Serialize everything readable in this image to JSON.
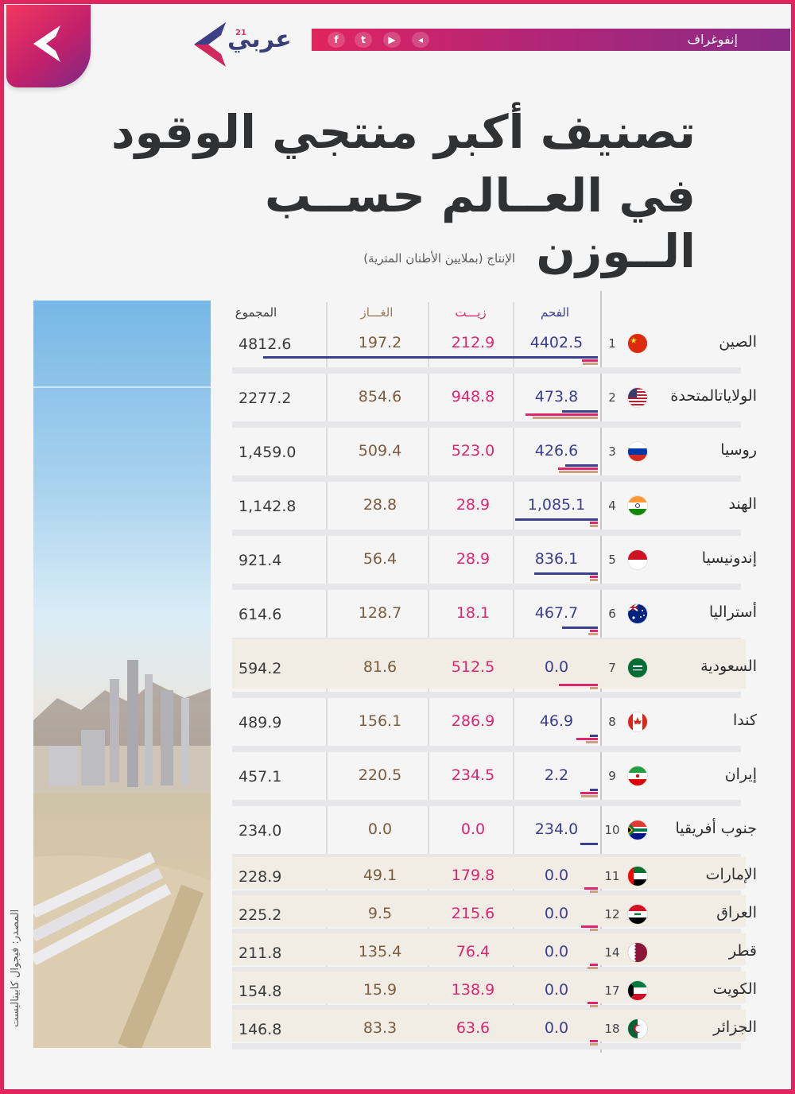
{
  "header": {
    "brand_name": "عربي",
    "brand_sup": "21",
    "section_label": "إنفوغراف",
    "social": [
      "f",
      "t",
      "▶",
      "◂"
    ]
  },
  "title_line1": "تصنيف أكبر منتجي الوقود",
  "title_line2": "في العــالم حســب الــوزن",
  "source": "المصدر: فيجوال كابيتاليست",
  "colors": {
    "coal": "#3d3d8f",
    "oil": "#e0246f",
    "gas": "#c9a27e",
    "total": "#3b3b3b",
    "accent": "#e0245e"
  },
  "chart_data": {
    "type": "table",
    "title": "تصنيف أكبر منتجي الوقود في العالم حسب الوزن",
    "subtitle": "الإنتاج (بملايين الأطنان المترية)",
    "columns": {
      "coal": "الفحم",
      "oil": "زيـــت",
      "gas": "الغـــاز",
      "total": "المجموع"
    },
    "rows": [
      {
        "rank": "1",
        "country": "الصين",
        "flag": "china",
        "coal": "4402.5",
        "oil": "212.9",
        "gas": "197.2",
        "total": "4812.6",
        "coal_v": 4402.5,
        "oil_v": 212.9,
        "gas_v": 197.2,
        "total_v": 4812.6
      },
      {
        "rank": "2",
        "country": "الولاياتالمتحدة",
        "flag": "usa",
        "coal": "473.8",
        "oil": "948.8",
        "gas": "854.6",
        "total": "2277.2",
        "coal_v": 473.8,
        "oil_v": 948.8,
        "gas_v": 854.6,
        "total_v": 2277.2
      },
      {
        "rank": "3",
        "country": "روسيا",
        "flag": "russia",
        "coal": "426.6",
        "oil": "523.0",
        "gas": "509.4",
        "total": "1,459.0",
        "coal_v": 426.6,
        "oil_v": 523.0,
        "gas_v": 509.4,
        "total_v": 1459.0
      },
      {
        "rank": "4",
        "country": "الهند",
        "flag": "india",
        "coal": "1,085.1",
        "oil": "28.9",
        "gas": "28.8",
        "total": "1,142.8",
        "coal_v": 1085.1,
        "oil_v": 28.9,
        "gas_v": 28.8,
        "total_v": 1142.8
      },
      {
        "rank": "5",
        "country": "إندونيسيا",
        "flag": "indonesia",
        "coal": "836.1",
        "oil": "28.9",
        "gas": "56.4",
        "total": "921.4",
        "coal_v": 836.1,
        "oil_v": 28.9,
        "gas_v": 56.4,
        "total_v": 921.4
      },
      {
        "rank": "6",
        "country": "أستراليا",
        "flag": "australia",
        "coal": "467.7",
        "oil": "18.1",
        "gas": "128.7",
        "total": "614.6",
        "coal_v": 467.7,
        "oil_v": 18.1,
        "gas_v": 128.7,
        "total_v": 614.6
      },
      {
        "rank": "7",
        "country": "السعودية",
        "flag": "saudi",
        "coal": "0.0",
        "oil": "512.5",
        "gas": "81.6",
        "total": "594.2",
        "coal_v": 0.0,
        "oil_v": 512.5,
        "gas_v": 81.6,
        "total_v": 594.2
      },
      {
        "rank": "8",
        "country": "كندا",
        "flag": "canada",
        "coal": "46.9",
        "oil": "286.9",
        "gas": "156.1",
        "total": "489.9",
        "coal_v": 46.9,
        "oil_v": 286.9,
        "gas_v": 156.1,
        "total_v": 489.9
      },
      {
        "rank": "9",
        "country": "إيران",
        "flag": "iran",
        "coal": "2.2",
        "oil": "234.5",
        "gas": "220.5",
        "total": "457.1",
        "coal_v": 2.2,
        "oil_v": 234.5,
        "gas_v": 220.5,
        "total_v": 457.1
      },
      {
        "rank": "10",
        "country": "جنوب أفريقيا",
        "flag": "southafrica",
        "coal": "234.0",
        "oil": "0.0",
        "gas": "0.0",
        "total": "234.0",
        "coal_v": 234.0,
        "oil_v": 0.0,
        "gas_v": 0.0,
        "total_v": 234.0
      },
      {
        "rank": "11",
        "country": "الإمارات",
        "flag": "uae",
        "coal": "0.0",
        "oil": "179.8",
        "gas": "49.1",
        "total": "228.9",
        "coal_v": 0.0,
        "oil_v": 179.8,
        "gas_v": 49.1,
        "total_v": 228.9
      },
      {
        "rank": "12",
        "country": "العراق",
        "flag": "iraq",
        "coal": "0.0",
        "oil": "215.6",
        "gas": "9.5",
        "total": "225.2",
        "coal_v": 0.0,
        "oil_v": 215.6,
        "gas_v": 9.5,
        "total_v": 225.2
      },
      {
        "rank": "14",
        "country": "قطر",
        "flag": "qatar",
        "coal": "0.0",
        "oil": "76.4",
        "gas": "135.4",
        "total": "211.8",
        "coal_v": 0.0,
        "oil_v": 76.4,
        "gas_v": 135.4,
        "total_v": 211.8
      },
      {
        "rank": "17",
        "country": "الكويت",
        "flag": "kuwait",
        "coal": "0.0",
        "oil": "138.9",
        "gas": "15.9",
        "total": "154.8",
        "coal_v": 0.0,
        "oil_v": 138.9,
        "gas_v": 15.9,
        "total_v": 154.8
      },
      {
        "rank": "18",
        "country": "الجزائر",
        "flag": "algeria",
        "coal": "0.0",
        "oil": "63.6",
        "gas": "83.3",
        "total": "146.8",
        "coal_v": 0.0,
        "oil_v": 63.6,
        "gas_v": 83.3,
        "total_v": 146.8
      }
    ]
  }
}
